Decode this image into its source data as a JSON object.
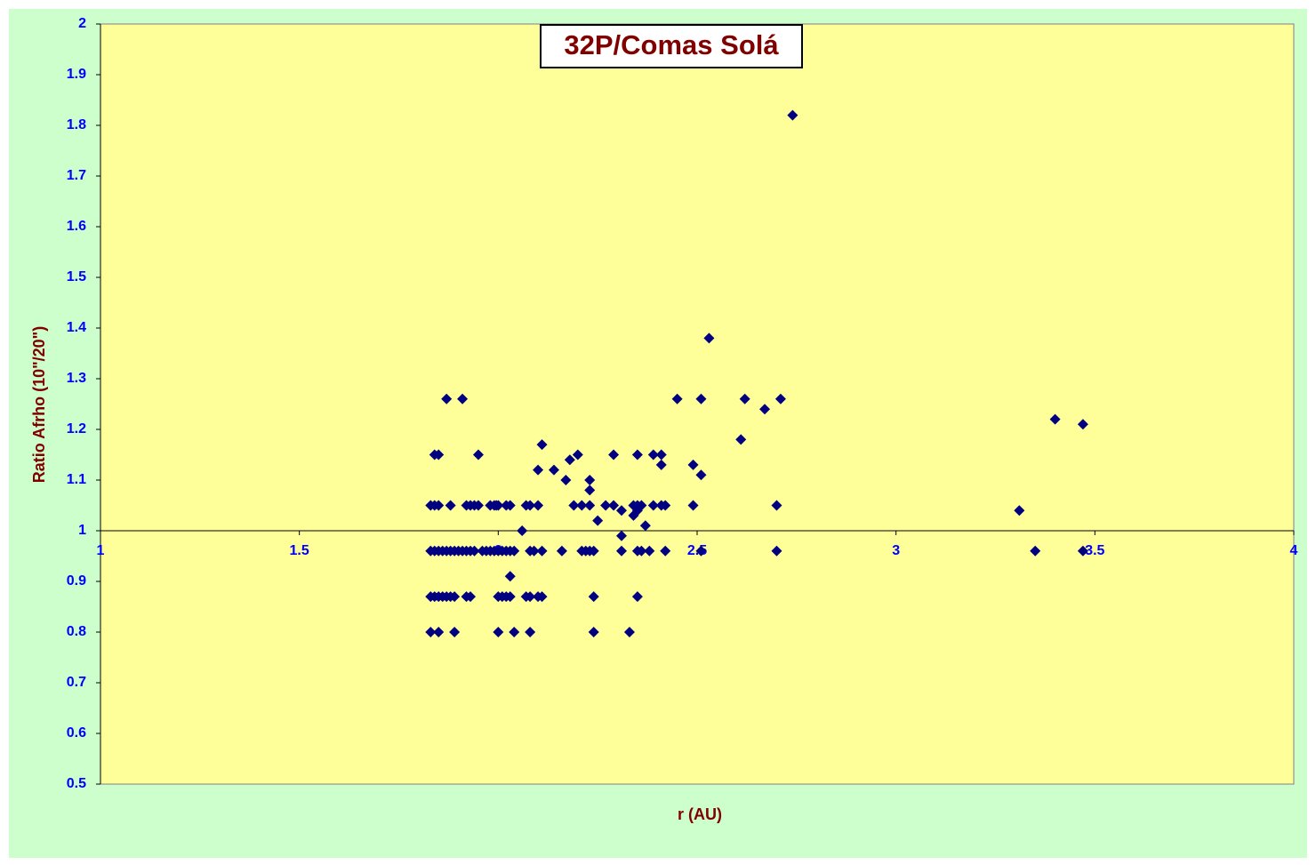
{
  "chart_data": {
    "type": "scatter",
    "title": "32P/Comas Solá",
    "xlabel": "r (AU)",
    "ylabel": "Ratio Afrho (10\"/20\")",
    "xlim": [
      1,
      4
    ],
    "xticks": [
      1,
      1.5,
      2,
      2.5,
      3,
      3.5,
      4
    ],
    "ylim": [
      0.5,
      2
    ],
    "yticks": [
      0.5,
      0.6,
      0.7,
      0.8,
      0.9,
      1,
      1.1,
      1.2,
      1.3,
      1.4,
      1.5,
      1.6,
      1.7,
      1.8,
      1.9,
      2
    ],
    "x_axis_at": 1,
    "series": [
      {
        "color": "#000080",
        "x": [
          1.83,
          1.84,
          1.85,
          1.86,
          1.87,
          1.88,
          1.89,
          1.9,
          1.91,
          1.92,
          1.93,
          1.94,
          1.96,
          1.97,
          1.98,
          1.99,
          2.0,
          2.01,
          2.02,
          2.03,
          2.04,
          2.08,
          2.09,
          2.11,
          2.16,
          2.21,
          2.22,
          2.23,
          2.24,
          2.31,
          2.35,
          2.36,
          2.38,
          2.42,
          2.51,
          2.7,
          3.35,
          3.47,
          1.83,
          1.84,
          1.85,
          1.86,
          1.87,
          1.88,
          1.89,
          1.92,
          1.93,
          2.0,
          2.01,
          2.02,
          2.03,
          2.07,
          2.08,
          2.1,
          2.11,
          2.24,
          2.35,
          1.83,
          1.85,
          1.89,
          2.0,
          2.04,
          2.08,
          2.24,
          2.33,
          1.83,
          1.84,
          1.85,
          1.88,
          1.92,
          1.93,
          1.94,
          1.95,
          1.98,
          1.99,
          1.995,
          2.0,
          2.02,
          2.03,
          2.07,
          2.08,
          2.1,
          2.19,
          2.21,
          2.23,
          2.27,
          2.29,
          2.34,
          2.35,
          2.36,
          2.39,
          2.41,
          2.42,
          2.49,
          2.7,
          1.84,
          1.85,
          1.95,
          2.2,
          2.29,
          2.35,
          2.39,
          2.41,
          1.87,
          1.91,
          2.45,
          2.51,
          2.62,
          2.71,
          2.11,
          2.1,
          2.14,
          2.17,
          2.18,
          2.23,
          2.23,
          2.25,
          2.31,
          2.31,
          2.34,
          2.35,
          2.37,
          2.41,
          2.49,
          2.51,
          2.53,
          2.61,
          2.67,
          2.74,
          3.31,
          3.4,
          3.47,
          2.06,
          2.03
        ],
        "values": [
          0.96,
          0.96,
          0.96,
          0.96,
          0.96,
          0.96,
          0.96,
          0.96,
          0.96,
          0.96,
          0.96,
          0.96,
          0.96,
          0.96,
          0.96,
          0.96,
          0.96,
          0.96,
          0.96,
          0.96,
          0.96,
          0.96,
          0.96,
          0.96,
          0.96,
          0.96,
          0.96,
          0.96,
          0.96,
          0.96,
          0.96,
          0.96,
          0.96,
          0.96,
          0.96,
          0.96,
          0.96,
          0.96,
          0.87,
          0.87,
          0.87,
          0.87,
          0.87,
          0.87,
          0.87,
          0.87,
          0.87,
          0.87,
          0.87,
          0.87,
          0.87,
          0.87,
          0.87,
          0.87,
          0.87,
          0.87,
          0.87,
          0.8,
          0.8,
          0.8,
          0.8,
          0.8,
          0.8,
          0.8,
          0.8,
          1.05,
          1.05,
          1.05,
          1.05,
          1.05,
          1.05,
          1.05,
          1.05,
          1.05,
          1.05,
          1.05,
          1.05,
          1.05,
          1.05,
          1.05,
          1.05,
          1.05,
          1.05,
          1.05,
          1.05,
          1.05,
          1.05,
          1.05,
          1.05,
          1.05,
          1.05,
          1.05,
          1.05,
          1.05,
          1.05,
          1.15,
          1.15,
          1.15,
          1.15,
          1.15,
          1.15,
          1.15,
          1.15,
          1.26,
          1.26,
          1.26,
          1.26,
          1.26,
          1.26,
          1.17,
          1.12,
          1.12,
          1.1,
          1.14,
          1.1,
          1.08,
          1.02,
          1.04,
          0.99,
          1.03,
          1.04,
          1.01,
          1.13,
          1.13,
          1.11,
          1.38,
          1.18,
          1.24,
          1.82,
          1.04,
          1.22,
          1.21,
          1.0,
          0.91
        ]
      }
    ]
  }
}
